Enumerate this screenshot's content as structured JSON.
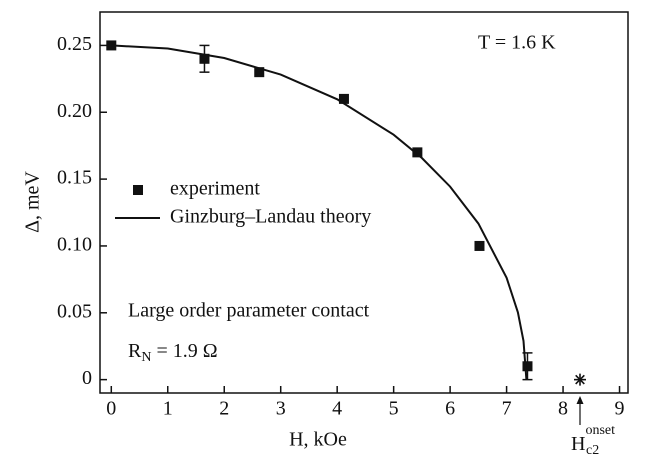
{
  "chart_data": {
    "type": "scatter",
    "xlabel": "H, kOe",
    "ylabel": "Δ, meV",
    "xlim": [
      -0.2,
      9.15
    ],
    "ylim": [
      -0.01,
      0.275
    ],
    "xticks": [
      0,
      1,
      2,
      3,
      4,
      5,
      6,
      7,
      8,
      9
    ],
    "yticks": [
      0,
      0.05,
      {
        "value": 0.1,
        "label": "0.10"
      },
      0.15,
      {
        "value": 0.2,
        "label": "0.20"
      },
      0.25
    ],
    "series": [
      {
        "name": "experiment",
        "type": "scatter",
        "color": "#111111",
        "x": [
          0,
          1.65,
          2.62,
          4.12,
          5.42,
          6.52,
          7.37
        ],
        "values": [
          0.25,
          0.24,
          0.23,
          0.21,
          0.17,
          0.1,
          0.01
        ],
        "errors": [
          null,
          0.01,
          null,
          null,
          null,
          null,
          0.01
        ]
      },
      {
        "name": "Ginzburg–Landau theory",
        "type": "line",
        "color": "#111111",
        "x": [
          0,
          1,
          2,
          3,
          4,
          5,
          5.5,
          6,
          6.5,
          7,
          7.2,
          7.3,
          7.35
        ],
        "values": [
          0.25,
          0.2477,
          0.2406,
          0.2282,
          0.2097,
          0.1832,
          0.1658,
          0.1444,
          0.1167,
          0.0762,
          0.0503,
          0.029,
          0
        ]
      }
    ],
    "annotations": {
      "temperature": "T = 1.6 K",
      "contact": "Large order parameter contact",
      "resistance": {
        "main": "R",
        "sub": "N",
        "rest": " = 1.9 Ω"
      },
      "onset": {
        "main": "H",
        "sub": "c2",
        "sup": "onset",
        "x": 8.3,
        "y": 0
      }
    }
  }
}
